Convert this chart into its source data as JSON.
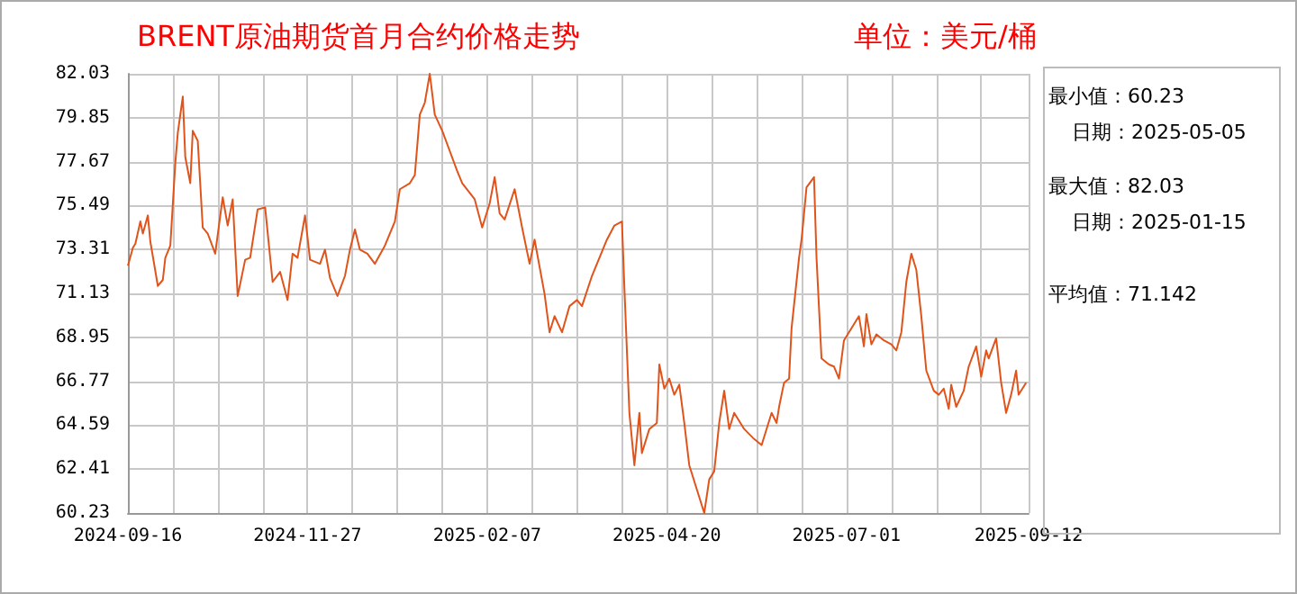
{
  "chart_data": {
    "type": "line",
    "title": "BRENT原油期货首月合约价格走势",
    "subtitle": "单位：美元/桶",
    "annotations": [
      "最小值：60.23",
      "日期：2025-05-05",
      "最大值：82.03",
      "日期：2025-01-15",
      "平均值：71.142"
    ],
    "x": [
      "2024-09-16",
      "2024-09-18",
      "2024-09-19",
      "2024-09-21",
      "2024-09-22",
      "2024-09-24",
      "2024-09-25",
      "2024-09-28",
      "2024-09-30",
      "2024-10-01",
      "2024-10-03",
      "2024-10-05",
      "2024-10-06",
      "2024-10-08",
      "2024-10-09",
      "2024-10-11",
      "2024-10-12",
      "2024-10-14",
      "2024-10-16",
      "2024-10-18",
      "2024-10-21",
      "2024-10-24",
      "2024-10-26",
      "2024-10-28",
      "2024-10-30",
      "2024-11-02",
      "2024-11-04",
      "2024-11-07",
      "2024-11-10",
      "2024-11-13",
      "2024-11-16",
      "2024-11-19",
      "2024-11-21",
      "2024-11-23",
      "2024-11-26",
      "2024-11-28",
      "2024-12-02",
      "2024-12-04",
      "2024-12-06",
      "2024-12-09",
      "2024-12-12",
      "2024-12-14",
      "2024-12-16",
      "2024-12-18",
      "2024-12-21",
      "2024-12-24",
      "2024-12-28",
      "2025-01-01",
      "2025-01-03",
      "2025-01-07",
      "2025-01-09",
      "2025-01-11",
      "2025-01-13",
      "2025-01-15",
      "2025-01-17",
      "2025-01-20",
      "2025-01-23",
      "2025-01-26",
      "2025-01-28",
      "2025-02-02",
      "2025-02-05",
      "2025-02-08",
      "2025-02-10",
      "2025-02-12",
      "2025-02-14",
      "2025-02-18",
      "2025-02-21",
      "2025-02-24",
      "2025-02-26",
      "2025-03-02",
      "2025-03-04",
      "2025-03-06",
      "2025-03-09",
      "2025-03-12",
      "2025-03-15",
      "2025-03-17",
      "2025-03-21",
      "2025-03-24",
      "2025-03-27",
      "2025-03-30",
      "2025-04-02",
      "2025-04-03",
      "2025-04-05",
      "2025-04-07",
      "2025-04-09",
      "2025-04-10",
      "2025-04-13",
      "2025-04-16",
      "2025-04-17",
      "2025-04-19",
      "2025-04-21",
      "2025-04-23",
      "2025-04-25",
      "2025-04-27",
      "2025-04-29",
      "2025-05-05",
      "2025-05-07",
      "2025-05-09",
      "2025-05-11",
      "2025-05-13",
      "2025-05-15",
      "2025-05-17",
      "2025-05-21",
      "2025-05-25",
      "2025-05-28",
      "2025-06-01",
      "2025-06-03",
      "2025-06-04",
      "2025-06-06",
      "2025-06-08",
      "2025-06-09",
      "2025-06-12",
      "2025-06-13",
      "2025-06-15",
      "2025-06-18",
      "2025-06-19",
      "2025-06-21",
      "2025-06-24",
      "2025-06-26",
      "2025-06-28",
      "2025-06-30",
      "2025-07-03",
      "2025-07-06",
      "2025-07-08",
      "2025-07-09",
      "2025-07-11",
      "2025-07-13",
      "2025-07-16",
      "2025-07-19",
      "2025-07-21",
      "2025-07-23",
      "2025-07-25",
      "2025-07-27",
      "2025-07-29",
      "2025-07-31",
      "2025-08-02",
      "2025-08-05",
      "2025-08-07",
      "2025-08-09",
      "2025-08-11",
      "2025-08-12",
      "2025-08-14",
      "2025-08-17",
      "2025-08-19",
      "2025-08-22",
      "2025-08-24",
      "2025-08-26",
      "2025-08-27",
      "2025-08-30",
      "2025-09-01",
      "2025-09-03",
      "2025-09-05",
      "2025-09-07",
      "2025-09-08",
      "2025-09-11"
    ],
    "series": [
      {
        "color": "#e0541b",
        "values": [
          72.5,
          73.4,
          73.6,
          74.7,
          74.1,
          75.0,
          73.7,
          71.5,
          71.8,
          72.9,
          73.5,
          77.6,
          79.1,
          80.9,
          77.9,
          76.6,
          79.2,
          78.7,
          74.4,
          74.1,
          73.1,
          75.9,
          74.5,
          75.8,
          71.0,
          72.8,
          72.9,
          75.3,
          75.4,
          71.7,
          72.2,
          70.8,
          73.1,
          72.9,
          75.0,
          72.8,
          72.6,
          73.3,
          71.9,
          71.0,
          72.0,
          73.3,
          74.3,
          73.3,
          73.1,
          72.6,
          73.5,
          74.7,
          76.3,
          76.6,
          77.0,
          80.0,
          80.6,
          82.03,
          80.0,
          79.2,
          78.2,
          77.2,
          76.6,
          75.8,
          74.4,
          75.6,
          76.9,
          75.1,
          74.8,
          76.3,
          74.4,
          72.6,
          73.8,
          71.1,
          69.2,
          70.0,
          69.2,
          70.5,
          70.8,
          70.5,
          72.0,
          72.9,
          73.8,
          74.5,
          74.7,
          71.4,
          65.2,
          62.6,
          65.2,
          63.2,
          64.4,
          64.7,
          67.6,
          66.4,
          66.9,
          66.1,
          66.6,
          64.7,
          62.6,
          60.23,
          61.9,
          62.3,
          64.7,
          66.3,
          64.4,
          65.2,
          64.4,
          63.9,
          63.6,
          65.2,
          64.7,
          65.5,
          66.7,
          66.9,
          69.4,
          72.9,
          73.8,
          76.4,
          76.9,
          72.9,
          67.9,
          67.6,
          67.5,
          66.9,
          68.8,
          69.4,
          70.0,
          68.5,
          70.1,
          68.6,
          69.1,
          68.8,
          68.6,
          68.3,
          69.2,
          71.7,
          73.1,
          72.3,
          70.0,
          67.3,
          66.3,
          66.1,
          66.4,
          65.4,
          66.6,
          65.5,
          66.3,
          67.5,
          68.5,
          67.0,
          68.3,
          67.9,
          68.9,
          66.7,
          65.2,
          66.1,
          67.3,
          66.1,
          66.7
        ]
      }
    ],
    "xlim": [
      "2024-09-16",
      "2025-09-12"
    ],
    "xticks": [
      "2024-09-16",
      {
        "value": "2024-10-04",
        "label": null
      },
      {
        "value": "2024-10-22",
        "label": null
      },
      {
        "value": "2024-11-09",
        "label": null
      },
      "2024-11-27",
      {
        "value": "2024-12-15",
        "label": null
      },
      {
        "value": "2025-01-02",
        "label": null
      },
      {
        "value": "2025-01-20",
        "label": null
      },
      "2025-02-07",
      {
        "value": "2025-02-25",
        "label": null
      },
      {
        "value": "2025-03-15",
        "label": null
      },
      {
        "value": "2025-04-02",
        "label": null
      },
      "2025-04-20",
      {
        "value": "2025-05-08",
        "label": null
      },
      {
        "value": "2025-05-26",
        "label": null
      },
      {
        "value": "2025-06-13",
        "label": null
      },
      "2025-07-01",
      {
        "value": "2025-07-19",
        "label": null
      },
      {
        "value": "2025-08-06",
        "label": null
      },
      {
        "value": "2025-08-24",
        "label": null
      },
      "2025-09-12"
    ],
    "ylim": [
      60.23,
      82.03
    ],
    "yticks": [
      60.23,
      62.41,
      64.59,
      66.77,
      68.95,
      71.13,
      73.31,
      75.49,
      77.67,
      79.85,
      82.03
    ],
    "grid": true,
    "marker": "none",
    "line_style": "solid"
  }
}
